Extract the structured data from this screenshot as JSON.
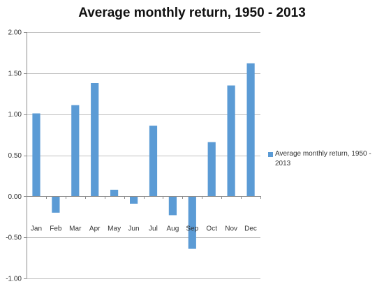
{
  "chart_data": {
    "type": "bar",
    "title": "Average monthly return, 1950 - 2013",
    "categories": [
      "Jan",
      "Feb",
      "Mar",
      "Apr",
      "May",
      "Jun",
      "Jul",
      "Aug",
      "Sep",
      "Oct",
      "Nov",
      "Dec"
    ],
    "series": [
      {
        "name": "Average monthly return, 1950 - 2013",
        "values": [
          1.01,
          -0.2,
          1.11,
          1.38,
          0.08,
          -0.09,
          0.86,
          -0.23,
          -0.64,
          0.66,
          1.35,
          1.62
        ],
        "color": "#5b9bd5"
      }
    ],
    "ylim": [
      -1.0,
      2.0
    ],
    "yticks": [
      "2.00",
      "1.50",
      "1.00",
      "0.50",
      "0.00",
      "-0.50",
      "-1.00"
    ],
    "ytick_values": [
      2.0,
      1.5,
      1.0,
      0.5,
      0.0,
      -0.5,
      -1.0
    ],
    "grid": true,
    "legend_position": "right",
    "bar_color": "#5b9bd5",
    "grid_color": "#bfbfbf"
  }
}
